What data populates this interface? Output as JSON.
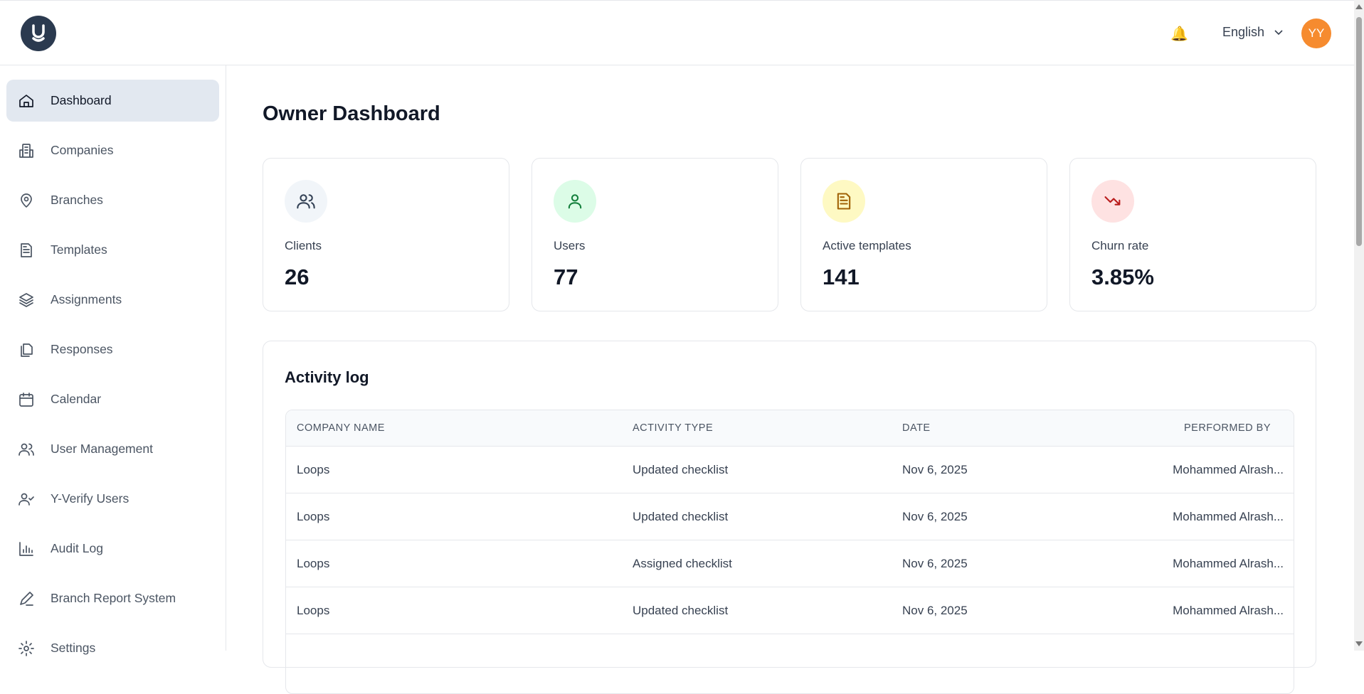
{
  "header": {
    "logo_text": "y",
    "notifications_icon": "bell-icon",
    "language": "English",
    "avatar_initials": "YY",
    "avatar_color": "#f68b2f"
  },
  "sidebar": {
    "items": [
      {
        "label": "Dashboard",
        "icon": "home-icon",
        "active": true
      },
      {
        "label": "Companies",
        "icon": "building-icon"
      },
      {
        "label": "Branches",
        "icon": "map-pin-icon"
      },
      {
        "label": "Templates",
        "icon": "file-text-icon"
      },
      {
        "label": "Assignments",
        "icon": "layers-icon"
      },
      {
        "label": "Responses",
        "icon": "copy-icon"
      },
      {
        "label": "Calendar",
        "icon": "calendar-icon"
      },
      {
        "label": "User Management",
        "icon": "users-icon"
      },
      {
        "label": "Y-Verify Users",
        "icon": "user-check-icon"
      },
      {
        "label": "Audit Log",
        "icon": "bar-chart-icon"
      },
      {
        "label": "Branch Report System",
        "icon": "pencil-icon"
      },
      {
        "label": "Settings",
        "icon": "gear-icon"
      }
    ]
  },
  "main": {
    "title": "Owner Dashboard",
    "stats": [
      {
        "label": "Clients",
        "value": "26",
        "icon": "users-icon",
        "bg": "#f1f5f9",
        "color": "#334155"
      },
      {
        "label": "Users",
        "value": "77",
        "icon": "user-icon",
        "bg": "#dcfce7",
        "color": "#15803d"
      },
      {
        "label": "Active templates",
        "value": "141",
        "icon": "file-text-icon",
        "bg": "#fef9c3",
        "color": "#a16207"
      },
      {
        "label": "Churn rate",
        "value": "3.85%",
        "icon": "trending-down-icon",
        "bg": "#fee2e2",
        "color": "#b91c1c"
      }
    ],
    "activity": {
      "title": "Activity log",
      "columns": [
        "COMPANY NAME",
        "ACTIVITY TYPE",
        "DATE",
        "PERFORMED BY"
      ],
      "rows": [
        [
          "Loops",
          "Updated checklist",
          "Nov 6, 2025",
          "Mohammed Alrash..."
        ],
        [
          "Loops",
          "Updated checklist",
          "Nov 6, 2025",
          "Mohammed Alrash..."
        ],
        [
          "Loops",
          "Assigned checklist",
          "Nov 6, 2025",
          "Mohammed Alrash..."
        ],
        [
          "Loops",
          "Updated checklist",
          "Nov 6, 2025",
          "Mohammed Alrash..."
        ]
      ]
    }
  }
}
